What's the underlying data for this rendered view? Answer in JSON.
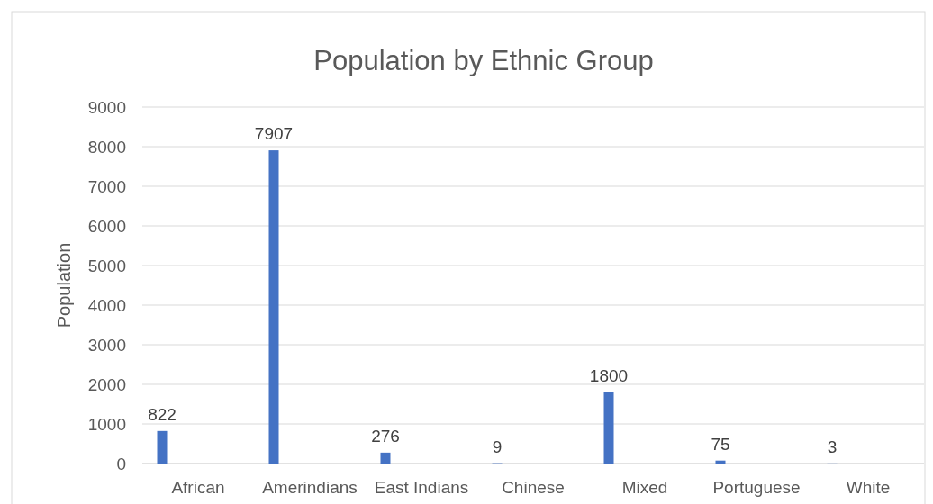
{
  "chart_data": {
    "type": "bar",
    "title": "Population by Ethnic Group",
    "ylabel": "Population",
    "categories": [
      "African",
      "Amerindians",
      "East Indians",
      "Chinese",
      "Mixed",
      "Portuguese",
      "White"
    ],
    "values": [
      822,
      7907,
      276,
      9,
      1800,
      75,
      3
    ],
    "color": "#4472c4",
    "ylim": [
      0,
      9000
    ],
    "yticks": [
      0,
      1000,
      2000,
      3000,
      4000,
      5000,
      6000,
      7000,
      8000,
      9000
    ],
    "grid": "y",
    "data_labels": true
  }
}
